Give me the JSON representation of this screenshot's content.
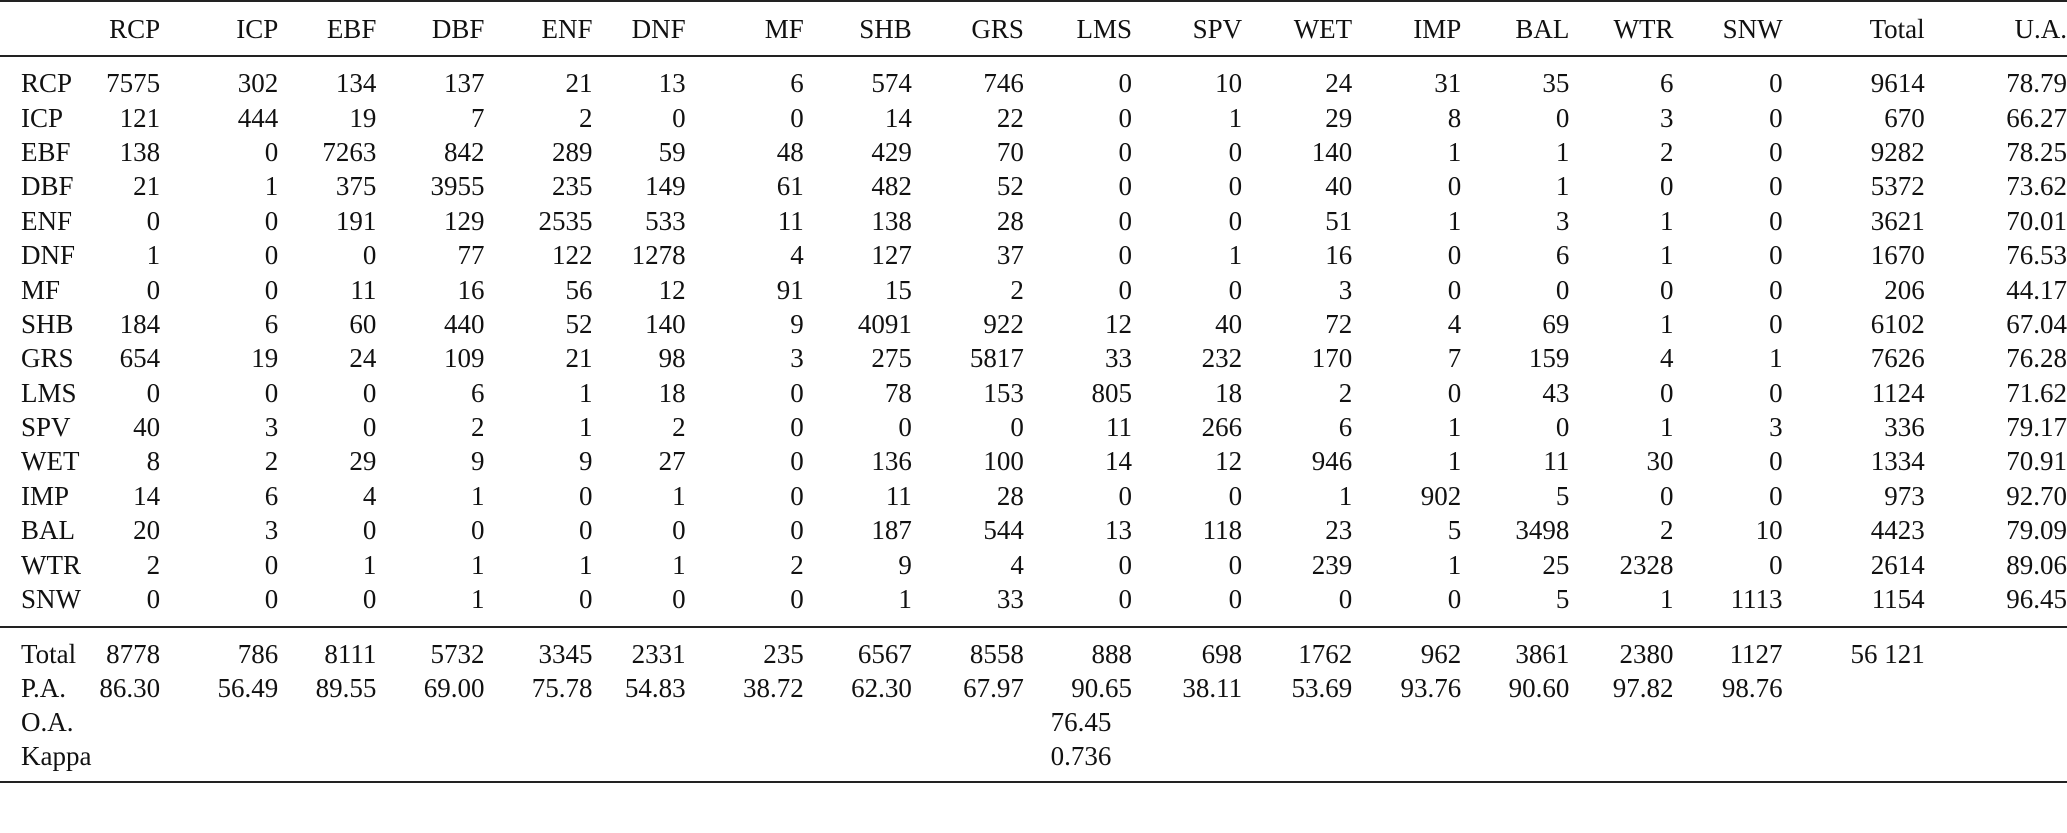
{
  "columns": [
    "RCP",
    "ICP",
    "EBF",
    "DBF",
    "ENF",
    "DNF",
    "MF",
    "SHB",
    "GRS",
    "LMS",
    "SPV",
    "WET",
    "IMP",
    "BAL",
    "WTR",
    "SNW",
    "Total",
    "U.A."
  ],
  "rows": [
    {
      "label": "RCP",
      "values": [
        "7575",
        "302",
        "134",
        "137",
        "21",
        "13",
        "6",
        "574",
        "746",
        "0",
        "10",
        "24",
        "31",
        "35",
        "6",
        "0",
        "9614",
        "78.79"
      ]
    },
    {
      "label": "ICP",
      "values": [
        "121",
        "444",
        "19",
        "7",
        "2",
        "0",
        "0",
        "14",
        "22",
        "0",
        "1",
        "29",
        "8",
        "0",
        "3",
        "0",
        "670",
        "66.27"
      ]
    },
    {
      "label": "EBF",
      "values": [
        "138",
        "0",
        "7263",
        "842",
        "289",
        "59",
        "48",
        "429",
        "70",
        "0",
        "0",
        "140",
        "1",
        "1",
        "2",
        "0",
        "9282",
        "78.25"
      ]
    },
    {
      "label": "DBF",
      "values": [
        "21",
        "1",
        "375",
        "3955",
        "235",
        "149",
        "61",
        "482",
        "52",
        "0",
        "0",
        "40",
        "0",
        "1",
        "0",
        "0",
        "5372",
        "73.62"
      ]
    },
    {
      "label": "ENF",
      "values": [
        "0",
        "0",
        "191",
        "129",
        "2535",
        "533",
        "11",
        "138",
        "28",
        "0",
        "0",
        "51",
        "1",
        "3",
        "1",
        "0",
        "3621",
        "70.01"
      ]
    },
    {
      "label": "DNF",
      "values": [
        "1",
        "0",
        "0",
        "77",
        "122",
        "1278",
        "4",
        "127",
        "37",
        "0",
        "1",
        "16",
        "0",
        "6",
        "1",
        "0",
        "1670",
        "76.53"
      ]
    },
    {
      "label": "MF",
      "values": [
        "0",
        "0",
        "11",
        "16",
        "56",
        "12",
        "91",
        "15",
        "2",
        "0",
        "0",
        "3",
        "0",
        "0",
        "0",
        "0",
        "206",
        "44.17"
      ]
    },
    {
      "label": "SHB",
      "values": [
        "184",
        "6",
        "60",
        "440",
        "52",
        "140",
        "9",
        "4091",
        "922",
        "12",
        "40",
        "72",
        "4",
        "69",
        "1",
        "0",
        "6102",
        "67.04"
      ]
    },
    {
      "label": "GRS",
      "values": [
        "654",
        "19",
        "24",
        "109",
        "21",
        "98",
        "3",
        "275",
        "5817",
        "33",
        "232",
        "170",
        "7",
        "159",
        "4",
        "1",
        "7626",
        "76.28"
      ]
    },
    {
      "label": "LMS",
      "values": [
        "0",
        "0",
        "0",
        "6",
        "1",
        "18",
        "0",
        "78",
        "153",
        "805",
        "18",
        "2",
        "0",
        "43",
        "0",
        "0",
        "1124",
        "71.62"
      ]
    },
    {
      "label": "SPV",
      "values": [
        "40",
        "3",
        "0",
        "2",
        "1",
        "2",
        "0",
        "0",
        "0",
        "11",
        "266",
        "6",
        "1",
        "0",
        "1",
        "3",
        "336",
        "79.17"
      ]
    },
    {
      "label": "WET",
      "values": [
        "8",
        "2",
        "29",
        "9",
        "9",
        "27",
        "0",
        "136",
        "100",
        "14",
        "12",
        "946",
        "1",
        "11",
        "30",
        "0",
        "1334",
        "70.91"
      ]
    },
    {
      "label": "IMP",
      "values": [
        "14",
        "6",
        "4",
        "1",
        "0",
        "1",
        "0",
        "11",
        "28",
        "0",
        "0",
        "1",
        "902",
        "5",
        "0",
        "0",
        "973",
        "92.70"
      ]
    },
    {
      "label": "BAL",
      "values": [
        "20",
        "3",
        "0",
        "0",
        "0",
        "0",
        "0",
        "187",
        "544",
        "13",
        "118",
        "23",
        "5",
        "3498",
        "2",
        "10",
        "4423",
        "79.09"
      ]
    },
    {
      "label": "WTR",
      "values": [
        "2",
        "0",
        "1",
        "1",
        "1",
        "1",
        "2",
        "9",
        "4",
        "0",
        "0",
        "239",
        "1",
        "25",
        "2328",
        "0",
        "2614",
        "89.06"
      ]
    },
    {
      "label": "SNW",
      "values": [
        "0",
        "0",
        "0",
        "1",
        "0",
        "0",
        "0",
        "1",
        "33",
        "0",
        "0",
        "0",
        "0",
        "5",
        "1",
        "1113",
        "1154",
        "96.45"
      ]
    }
  ],
  "totals": {
    "label": "Total",
    "values": [
      "8778",
      "786",
      "8111",
      "5732",
      "3345",
      "2331",
      "235",
      "6567",
      "8558",
      "888",
      "698",
      "1762",
      "962",
      "3861",
      "2380",
      "1127"
    ],
    "grand": "56 121"
  },
  "producer_accuracy": {
    "label": "P.A.",
    "values": [
      "86.30",
      "56.49",
      "89.55",
      "69.00",
      "75.78",
      "54.83",
      "38.72",
      "62.30",
      "67.97",
      "90.65",
      "38.11",
      "53.69",
      "93.76",
      "90.60",
      "97.82",
      "98.76"
    ]
  },
  "overall_accuracy": {
    "label": "O.A.",
    "value": "76.45"
  },
  "kappa": {
    "label": "Kappa",
    "value": "0.736"
  }
}
